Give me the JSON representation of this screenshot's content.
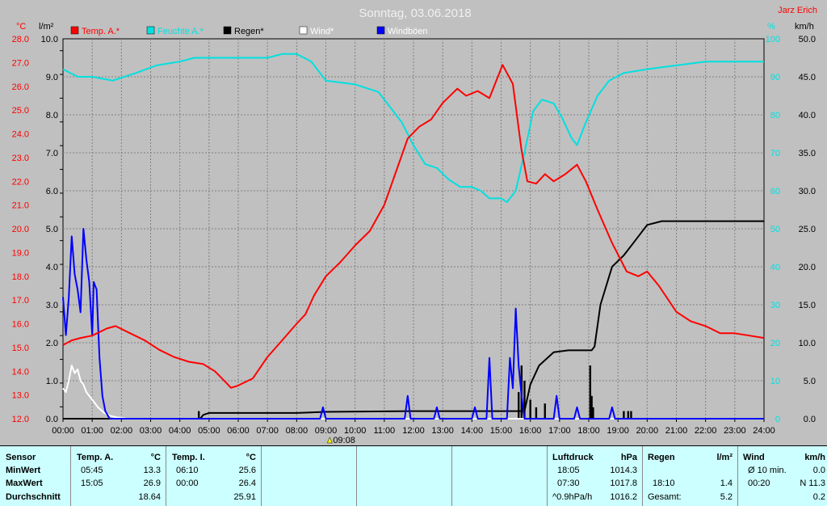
{
  "title": "Sonntag, 03.06.2018",
  "author": "Jarz Erich",
  "colors": {
    "temp": "#ff0000",
    "humidity": "#00e0e0",
    "rain": "#000000",
    "wind": "#ffffff",
    "gust": "#0000ff",
    "plot_bg": "#c0c0c0",
    "grid": "#808080"
  },
  "chart_data": {
    "type": "line",
    "title": "Sonntag, 03.06.2018",
    "time_marker": "09:08",
    "legend": [
      {
        "key": "temp",
        "label": "Temp. A.*"
      },
      {
        "key": "humidity",
        "label": "Feuchte A.*"
      },
      {
        "key": "rain",
        "label": "Regen*"
      },
      {
        "key": "wind",
        "label": "Wind*"
      },
      {
        "key": "gust",
        "label": "Windböen"
      }
    ],
    "axes": {
      "x": {
        "unit": "h",
        "range": [
          0,
          24
        ],
        "ticks": [
          "00:00",
          "01:00",
          "02:00",
          "03:00",
          "04:00",
          "05:00",
          "06:00",
          "07:00",
          "08:00",
          "09:00",
          "10:00",
          "11:00",
          "12:00",
          "13:00",
          "14:00",
          "15:00",
          "16:00",
          "17:00",
          "18:00",
          "19:00",
          "20:00",
          "21:00",
          "22:00",
          "23:00",
          "24:00"
        ]
      },
      "temp": {
        "unit": "°C",
        "range": [
          12,
          28
        ],
        "ticks": [
          "12.0",
          "13.0",
          "14.0",
          "15.0",
          "16.0",
          "17.0",
          "18.0",
          "19.0",
          "20.0",
          "21.0",
          "22.0",
          "23.0",
          "24.0",
          "25.0",
          "26.0",
          "27.0",
          "28.0"
        ]
      },
      "rain": {
        "unit": "l/m²",
        "range": [
          0,
          10
        ],
        "ticks": [
          "0.0",
          "1.0",
          "2.0",
          "3.0",
          "4.0",
          "5.0",
          "6.0",
          "7.0",
          "8.0",
          "9.0",
          "10.0"
        ]
      },
      "humidity": {
        "unit": "%",
        "range": [
          0,
          100
        ],
        "ticks": [
          "0",
          "10",
          "20",
          "30",
          "40",
          "50",
          "60",
          "70",
          "80",
          "90",
          "100"
        ]
      },
      "wind": {
        "unit": "km/h",
        "range": [
          0,
          50
        ],
        "ticks": [
          "0.0",
          "5.0",
          "10.0",
          "15.0",
          "20.0",
          "25.0",
          "30.0",
          "35.0",
          "40.0",
          "45.0",
          "50.0"
        ]
      }
    },
    "series": [
      {
        "key": "temp",
        "name": "Temp. A.*",
        "axis": "temp",
        "points": [
          [
            0,
            15.1
          ],
          [
            0.3,
            15.3
          ],
          [
            0.6,
            15.4
          ],
          [
            1.0,
            15.5
          ],
          [
            1.5,
            15.8
          ],
          [
            1.8,
            15.9
          ],
          [
            2.3,
            15.6
          ],
          [
            2.8,
            15.3
          ],
          [
            3.3,
            14.9
          ],
          [
            3.8,
            14.6
          ],
          [
            4.3,
            14.4
          ],
          [
            4.8,
            14.3
          ],
          [
            5.2,
            14.0
          ],
          [
            5.6,
            13.5
          ],
          [
            5.75,
            13.3
          ],
          [
            6.0,
            13.4
          ],
          [
            6.5,
            13.7
          ],
          [
            7.0,
            14.6
          ],
          [
            7.5,
            15.3
          ],
          [
            8.0,
            16.0
          ],
          [
            8.3,
            16.4
          ],
          [
            8.6,
            17.2
          ],
          [
            9.0,
            18.0
          ],
          [
            9.5,
            18.6
          ],
          [
            10.0,
            19.3
          ],
          [
            10.5,
            19.9
          ],
          [
            11.0,
            21.0
          ],
          [
            11.4,
            22.4
          ],
          [
            11.8,
            23.8
          ],
          [
            12.2,
            24.3
          ],
          [
            12.6,
            24.6
          ],
          [
            13.0,
            25.3
          ],
          [
            13.5,
            25.9
          ],
          [
            13.8,
            25.6
          ],
          [
            14.2,
            25.8
          ],
          [
            14.6,
            25.5
          ],
          [
            15.05,
            26.9
          ],
          [
            15.4,
            26.1
          ],
          [
            15.7,
            23.3
          ],
          [
            15.9,
            22.0
          ],
          [
            16.2,
            21.9
          ],
          [
            16.5,
            22.3
          ],
          [
            16.8,
            22.0
          ],
          [
            17.2,
            22.3
          ],
          [
            17.6,
            22.7
          ],
          [
            17.9,
            22.0
          ],
          [
            18.3,
            20.8
          ],
          [
            18.8,
            19.4
          ],
          [
            19.3,
            18.2
          ],
          [
            19.7,
            18.0
          ],
          [
            20.0,
            18.2
          ],
          [
            20.4,
            17.6
          ],
          [
            21.0,
            16.5
          ],
          [
            21.5,
            16.1
          ],
          [
            22.0,
            15.9
          ],
          [
            22.5,
            15.6
          ],
          [
            23.0,
            15.6
          ],
          [
            23.5,
            15.5
          ],
          [
            24.0,
            15.4
          ]
        ]
      },
      {
        "key": "humidity",
        "name": "Feuchte A.*",
        "axis": "humidity",
        "points": [
          [
            0,
            92
          ],
          [
            0.5,
            90
          ],
          [
            1.0,
            90
          ],
          [
            1.7,
            89
          ],
          [
            2.5,
            91
          ],
          [
            3.2,
            93
          ],
          [
            4.0,
            94
          ],
          [
            4.5,
            95
          ],
          [
            5.0,
            95
          ],
          [
            6.0,
            95
          ],
          [
            7.0,
            95
          ],
          [
            7.5,
            96
          ],
          [
            8.0,
            96
          ],
          [
            8.5,
            94
          ],
          [
            9.0,
            89
          ],
          [
            10.0,
            88
          ],
          [
            10.8,
            86
          ],
          [
            11.2,
            82
          ],
          [
            11.6,
            78
          ],
          [
            12.0,
            72
          ],
          [
            12.4,
            67
          ],
          [
            12.8,
            66
          ],
          [
            13.2,
            63
          ],
          [
            13.6,
            61
          ],
          [
            14.0,
            61
          ],
          [
            14.3,
            60
          ],
          [
            14.6,
            58
          ],
          [
            15.0,
            58
          ],
          [
            15.2,
            57
          ],
          [
            15.5,
            60
          ],
          [
            15.8,
            70
          ],
          [
            16.1,
            81
          ],
          [
            16.4,
            84
          ],
          [
            16.8,
            83
          ],
          [
            17.1,
            79
          ],
          [
            17.4,
            74
          ],
          [
            17.6,
            72
          ],
          [
            17.9,
            78
          ],
          [
            18.3,
            85
          ],
          [
            18.7,
            89
          ],
          [
            19.2,
            91
          ],
          [
            20.0,
            92
          ],
          [
            21.0,
            93
          ],
          [
            22.0,
            94
          ],
          [
            23.0,
            94
          ],
          [
            24.0,
            94
          ]
        ]
      },
      {
        "key": "rain",
        "name": "Regen*",
        "axis": "rain",
        "points": [
          [
            0,
            0
          ],
          [
            4.7,
            0
          ],
          [
            4.8,
            0.1
          ],
          [
            5.0,
            0.15
          ],
          [
            8.0,
            0.15
          ],
          [
            9.0,
            0.18
          ],
          [
            12.0,
            0.2
          ],
          [
            14.0,
            0.2
          ],
          [
            15.8,
            0.2
          ],
          [
            16.0,
            0.9
          ],
          [
            16.3,
            1.4
          ],
          [
            16.8,
            1.75
          ],
          [
            17.3,
            1.8
          ],
          [
            18.1,
            1.8
          ],
          [
            18.2,
            1.9
          ],
          [
            18.4,
            3.0
          ],
          [
            18.8,
            4.0
          ],
          [
            19.2,
            4.3
          ],
          [
            19.5,
            4.6
          ],
          [
            20.0,
            5.1
          ],
          [
            20.5,
            5.2
          ],
          [
            21.0,
            5.2
          ],
          [
            24.0,
            5.2
          ]
        ]
      },
      {
        "key": "wind",
        "name": "Wind*",
        "axis": "wind",
        "points": [
          [
            0,
            4
          ],
          [
            0.1,
            3.5
          ],
          [
            0.2,
            5.0
          ],
          [
            0.3,
            7.0
          ],
          [
            0.4,
            6.0
          ],
          [
            0.5,
            6.5
          ],
          [
            0.6,
            5.0
          ],
          [
            0.7,
            4.5
          ],
          [
            0.8,
            3.5
          ],
          [
            1.0,
            2.5
          ],
          [
            1.2,
            1.5
          ],
          [
            1.4,
            0.8
          ],
          [
            1.6,
            0.4
          ],
          [
            1.8,
            0.2
          ],
          [
            2.2,
            0
          ],
          [
            24.0,
            0
          ]
        ]
      },
      {
        "key": "gust",
        "name": "Windböen",
        "axis": "wind",
        "points": [
          [
            0,
            16
          ],
          [
            0.1,
            11
          ],
          [
            0.2,
            16
          ],
          [
            0.3,
            24
          ],
          [
            0.4,
            19
          ],
          [
            0.5,
            17
          ],
          [
            0.6,
            14
          ],
          [
            0.7,
            25
          ],
          [
            0.8,
            21
          ],
          [
            0.9,
            18
          ],
          [
            1.0,
            11
          ],
          [
            1.05,
            18
          ],
          [
            1.15,
            17
          ],
          [
            1.25,
            8
          ],
          [
            1.35,
            3
          ],
          [
            1.45,
            1
          ],
          [
            1.6,
            0
          ],
          [
            8.8,
            0
          ],
          [
            8.9,
            1.5
          ],
          [
            9.0,
            0
          ],
          [
            11.7,
            0
          ],
          [
            11.8,
            3
          ],
          [
            11.9,
            0
          ],
          [
            12.7,
            0
          ],
          [
            12.8,
            1.5
          ],
          [
            12.9,
            0
          ],
          [
            14.0,
            0
          ],
          [
            14.1,
            1.5
          ],
          [
            14.2,
            0
          ],
          [
            14.5,
            0
          ],
          [
            14.6,
            8
          ],
          [
            14.7,
            0
          ],
          [
            15.2,
            0
          ],
          [
            15.3,
            8
          ],
          [
            15.4,
            4
          ],
          [
            15.5,
            14.5
          ],
          [
            15.6,
            7
          ],
          [
            15.7,
            3
          ],
          [
            15.8,
            0
          ],
          [
            16.8,
            0
          ],
          [
            16.9,
            3
          ],
          [
            17.0,
            0
          ],
          [
            17.5,
            0
          ],
          [
            17.6,
            1.5
          ],
          [
            17.7,
            0
          ],
          [
            18.7,
            0
          ],
          [
            18.8,
            1.5
          ],
          [
            18.9,
            0
          ],
          [
            24.0,
            0
          ]
        ]
      }
    ],
    "rain_bars": [
      [
        4.65,
        0.2
      ],
      [
        15.6,
        0.7
      ],
      [
        15.7,
        1.4
      ],
      [
        15.8,
        1.0
      ],
      [
        16.0,
        0.5
      ],
      [
        16.2,
        0.3
      ],
      [
        16.5,
        0.4
      ],
      [
        18.05,
        1.4
      ],
      [
        18.1,
        0.6
      ],
      [
        18.15,
        0.3
      ],
      [
        19.2,
        0.2
      ],
      [
        19.35,
        0.2
      ],
      [
        19.45,
        0.2
      ]
    ]
  },
  "stats": {
    "headers": {
      "sensor": "Sensor",
      "temp_a": "Temp. A.",
      "temp_a_unit": "°C",
      "temp_i": "Temp. I.",
      "temp_i_unit": "°C",
      "pressure": "Luftdruck",
      "pressure_unit": "hPa",
      "rain": "Regen",
      "rain_unit": "l/m²",
      "wind": "Wind",
      "wind_unit": "km/h"
    },
    "rows": {
      "min": "MinWert",
      "max": "MaxWert",
      "avg": "Durchschnitt"
    },
    "temp_a": {
      "min_time": "05:45",
      "min_val": "13.3",
      "max_time": "15:05",
      "max_val": "26.9",
      "avg": "18.64"
    },
    "temp_i": {
      "min_time": "06:10",
      "min_val": "25.6",
      "max_time": "00:00",
      "max_val": "26.4",
      "avg": "25.91"
    },
    "pressure": {
      "min_time": "18:05",
      "min_val": "1014.3",
      "max_time": "07:30",
      "max_val": "1017.8",
      "trend_label": "^0.9hPa/h",
      "avg": "1016.2"
    },
    "rain": {
      "r1_time": "18:10",
      "r1_val": "1.4",
      "total_label": "Gesamt:",
      "total_val": "5.2"
    },
    "wind": {
      "avg_label": "Ø 10 min.",
      "avg_val": "0.0",
      "gust_time": "00:20",
      "gust_val": "N 11.3",
      "avg_day": "0.2"
    }
  }
}
